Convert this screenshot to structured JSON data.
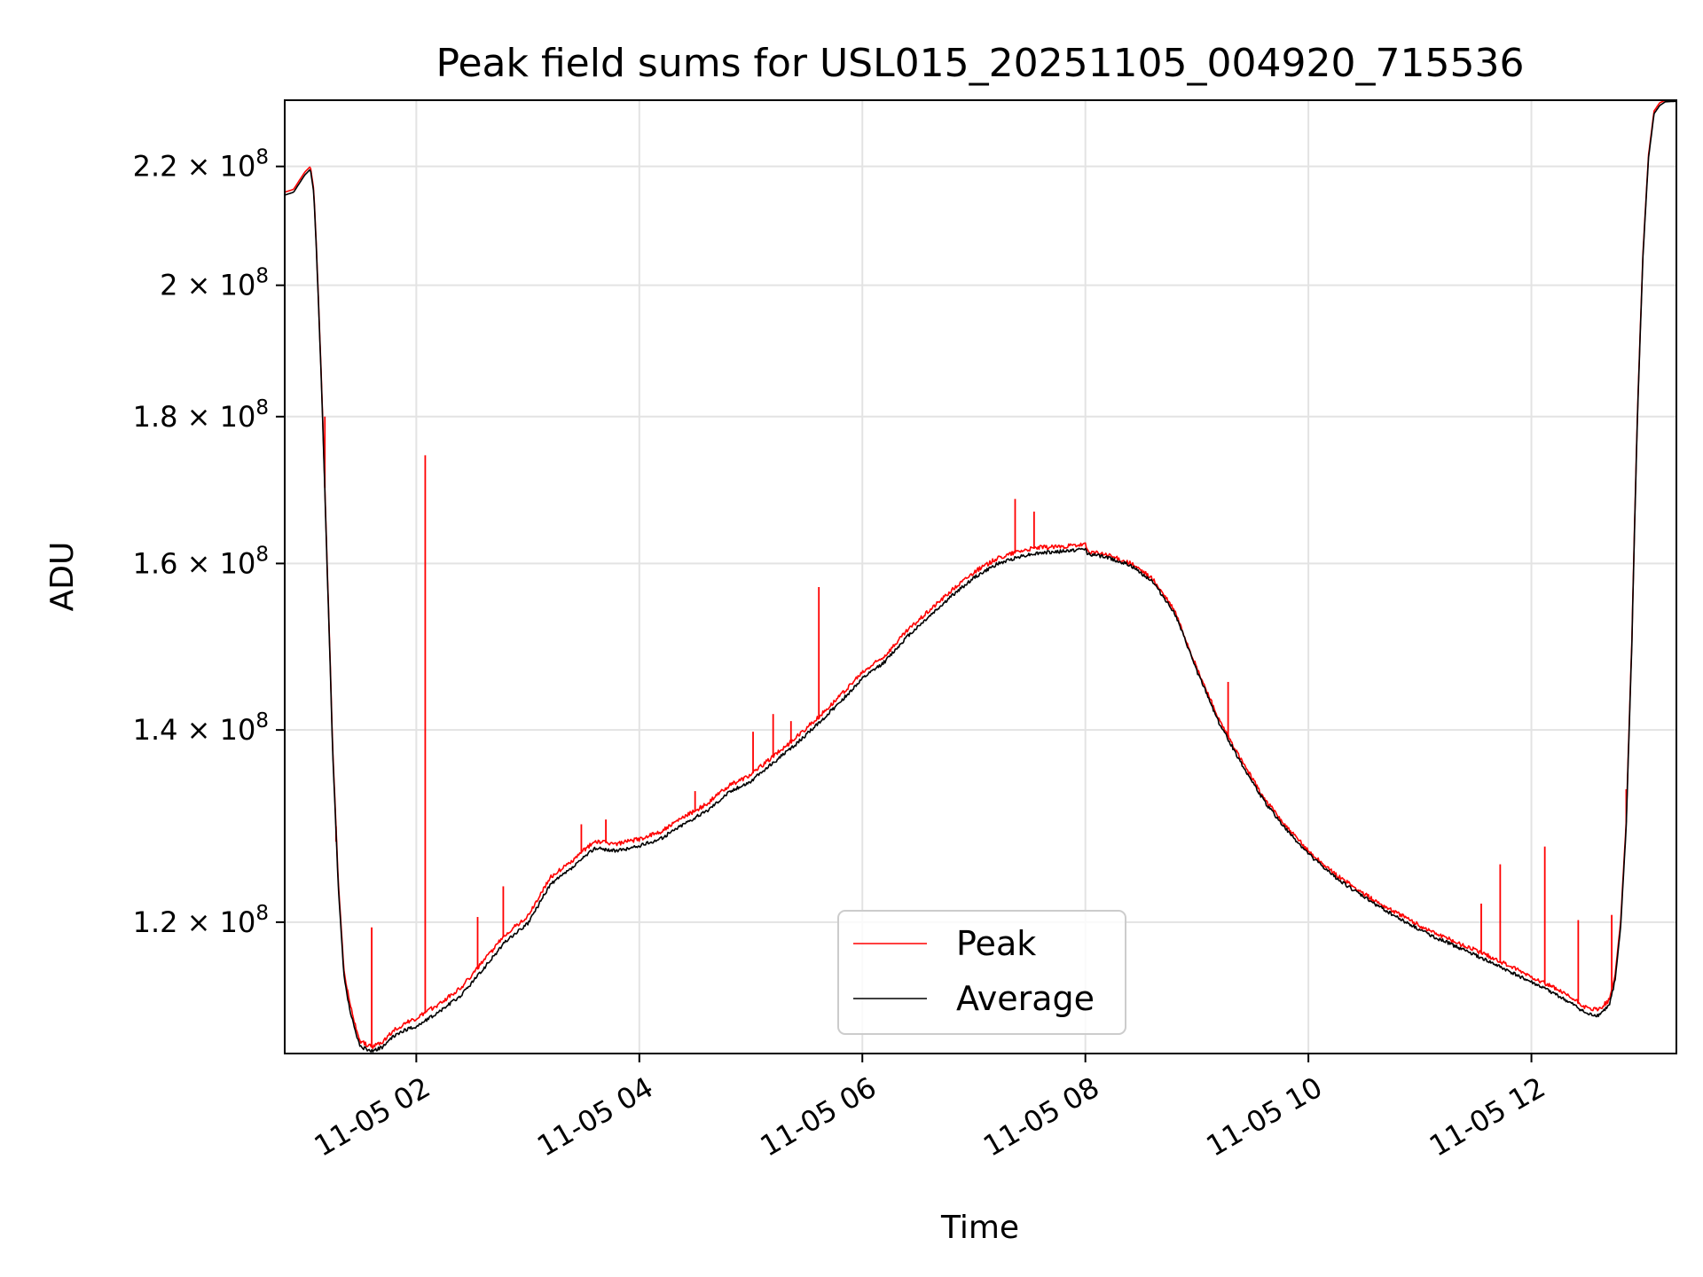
{
  "chart_data": {
    "type": "line",
    "title": "Peak field sums for USL015_20251105_004920_715536",
    "xlabel": "Time",
    "ylabel": "ADU",
    "x_unit": "hours since 11-05 00:00",
    "xlim": [
      0.82,
      13.3
    ],
    "ylim": [
      108000000,
      232000000
    ],
    "yscale": "log",
    "grid": true,
    "legend_position": "lower-center",
    "x_ticks": [
      {
        "value": 2,
        "label": "11-05 02"
      },
      {
        "value": 4,
        "label": "11-05 04"
      },
      {
        "value": 6,
        "label": "11-05 06"
      },
      {
        "value": 8,
        "label": "11-05 08"
      },
      {
        "value": 10,
        "label": "11-05 10"
      },
      {
        "value": 12,
        "label": "11-05 12"
      }
    ],
    "y_ticks": [
      {
        "value": 120000000,
        "mantissa": "1.2",
        "exponent": "8"
      },
      {
        "value": 140000000,
        "mantissa": "1.4",
        "exponent": "8"
      },
      {
        "value": 160000000,
        "mantissa": "1.6",
        "exponent": "8"
      },
      {
        "value": 180000000,
        "mantissa": "1.8",
        "exponent": "8"
      },
      {
        "value": 200000000,
        "mantissa": "2",
        "exponent": "8"
      },
      {
        "value": 220000000,
        "mantissa": "2.2",
        "exponent": "8"
      }
    ],
    "times_sign": "×",
    "base_ten": "10",
    "series": [
      {
        "name": "Peak",
        "color": "#ff0000",
        "x": [
          0.82,
          0.9,
          0.95,
          1.0,
          1.05,
          1.08,
          1.1,
          1.15,
          1.2,
          1.25,
          1.3,
          1.35,
          1.4,
          1.45,
          1.5,
          1.6,
          1.7,
          1.8,
          1.9,
          2.0,
          2.2,
          2.4,
          2.6,
          2.8,
          3.0,
          3.2,
          3.4,
          3.6,
          3.8,
          4.0,
          4.2,
          4.4,
          4.6,
          4.8,
          5.0,
          5.2,
          5.4,
          5.6,
          5.8,
          6.0,
          6.2,
          6.4,
          6.6,
          6.8,
          7.0,
          7.2,
          7.4,
          7.5,
          7.6,
          7.8,
          8.0,
          8.02,
          8.2,
          8.4,
          8.6,
          8.8,
          9.0,
          9.2,
          9.4,
          9.6,
          9.8,
          10.0,
          10.2,
          10.4,
          10.6,
          10.8,
          11.0,
          11.2,
          11.4,
          11.6,
          11.8,
          12.0,
          12.2,
          12.4,
          12.5,
          12.6,
          12.7,
          12.75,
          12.8,
          12.85,
          12.9,
          12.95,
          13.0,
          13.05,
          13.1,
          13.15,
          13.2,
          13.3
        ],
        "y": [
          215500000,
          216000000,
          217500000,
          219000000,
          220000000,
          216000000,
          208000000,
          185000000,
          160000000,
          138000000,
          124000000,
          115500000,
          112500000,
          110500000,
          109000000,
          108500000,
          109000000,
          110000000,
          110600000,
          111000000,
          112300000,
          113800000,
          116200000,
          118800000,
          120500000,
          124300000,
          126000000,
          128000000,
          127700000,
          128200000,
          129000000,
          130500000,
          131800000,
          133800000,
          135000000,
          137000000,
          139000000,
          141300000,
          143800000,
          146500000,
          148500000,
          151500000,
          154000000,
          156500000,
          158800000,
          160500000,
          161500000,
          161800000,
          162000000,
          162100000,
          162300000,
          161500000,
          161000000,
          160000000,
          158000000,
          154000000,
          147000000,
          141000000,
          136500000,
          132500000,
          129500000,
          127000000,
          125000000,
          123400000,
          122000000,
          120800000,
          119600000,
          118600000,
          117700000,
          116800000,
          115800000,
          114800000,
          113800000,
          112600000,
          111900000,
          111800000,
          112700000,
          115000000,
          120000000,
          130000000,
          150000000,
          180000000,
          205000000,
          222000000,
          230000000,
          231500000,
          232000000,
          232000000
        ],
        "spikes": [
          {
            "x": 1.18,
            "y": 180000000
          },
          {
            "x": 1.28,
            "y": 128000000
          },
          {
            "x": 1.6,
            "y": 119500000
          },
          {
            "x": 2.08,
            "y": 174500000
          },
          {
            "x": 2.55,
            "y": 120500000
          },
          {
            "x": 2.78,
            "y": 123500000
          },
          {
            "x": 3.48,
            "y": 129800000
          },
          {
            "x": 3.7,
            "y": 130300000
          },
          {
            "x": 4.5,
            "y": 133300000
          },
          {
            "x": 5.02,
            "y": 139800000
          },
          {
            "x": 5.2,
            "y": 141800000
          },
          {
            "x": 5.36,
            "y": 141000000
          },
          {
            "x": 5.61,
            "y": 157000000
          },
          {
            "x": 7.37,
            "y": 168500000
          },
          {
            "x": 7.54,
            "y": 166800000
          },
          {
            "x": 9.28,
            "y": 145500000
          },
          {
            "x": 11.55,
            "y": 121800000
          },
          {
            "x": 11.72,
            "y": 125700000
          },
          {
            "x": 12.12,
            "y": 127500000
          },
          {
            "x": 12.42,
            "y": 120200000
          },
          {
            "x": 12.72,
            "y": 120700000
          },
          {
            "x": 12.85,
            "y": 133500000
          }
        ]
      },
      {
        "name": "Average",
        "color": "#000000",
        "x": [
          0.82,
          0.9,
          0.95,
          1.0,
          1.05,
          1.08,
          1.1,
          1.15,
          1.2,
          1.25,
          1.3,
          1.35,
          1.4,
          1.45,
          1.5,
          1.6,
          1.7,
          1.8,
          1.9,
          2.0,
          2.2,
          2.4,
          2.6,
          2.8,
          3.0,
          3.2,
          3.4,
          3.6,
          3.8,
          4.0,
          4.2,
          4.4,
          4.6,
          4.8,
          5.0,
          5.2,
          5.4,
          5.6,
          5.8,
          6.0,
          6.2,
          6.4,
          6.6,
          6.8,
          7.0,
          7.2,
          7.4,
          7.5,
          7.6,
          7.8,
          8.0,
          8.02,
          8.2,
          8.4,
          8.6,
          8.8,
          9.0,
          9.2,
          9.4,
          9.6,
          9.8,
          10.0,
          10.2,
          10.4,
          10.6,
          10.8,
          11.0,
          11.2,
          11.4,
          11.6,
          11.8,
          12.0,
          12.2,
          12.4,
          12.5,
          12.6,
          12.7,
          12.75,
          12.8,
          12.85,
          12.9,
          12.95,
          13.0,
          13.05,
          13.1,
          13.15,
          13.2,
          13.3
        ],
        "y": [
          215000000,
          215500000,
          217000000,
          218500000,
          219500000,
          215500000,
          207500000,
          184500000,
          159500000,
          137500000,
          123500000,
          115000000,
          112000000,
          110000000,
          108500000,
          108200000,
          108500000,
          109500000,
          110000000,
          110300000,
          111600000,
          113100000,
          115500000,
          118100000,
          119800000,
          123600000,
          125300000,
          127300000,
          127000000,
          127500000,
          128300000,
          129800000,
          131100000,
          133100000,
          134300000,
          136300000,
          138300000,
          140600000,
          143100000,
          145800000,
          147800000,
          150800000,
          153300000,
          155800000,
          158100000,
          159800000,
          160800000,
          161100000,
          161300000,
          161500000,
          161800000,
          161200000,
          160700000,
          159700000,
          157700000,
          153700000,
          146700000,
          140700000,
          136200000,
          132200000,
          129200000,
          126700000,
          124700000,
          123100000,
          121700000,
          120400000,
          119200000,
          118200000,
          117300000,
          116300000,
          115300000,
          114300000,
          113300000,
          112100000,
          111400000,
          111300000,
          112200000,
          114500000,
          119500000,
          129500000,
          149500000,
          179500000,
          204500000,
          221500000,
          229500000,
          231000000,
          231700000,
          231800000
        ]
      }
    ]
  }
}
